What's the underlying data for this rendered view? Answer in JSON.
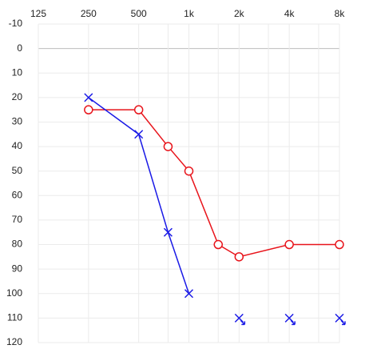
{
  "chart_data": {
    "type": "line",
    "title": "",
    "xlabel": "",
    "ylabel": "",
    "x_scale": "log",
    "x_ticks": [
      {
        "value": 125,
        "label": "125"
      },
      {
        "value": 250,
        "label": "250"
      },
      {
        "value": 500,
        "label": "500"
      },
      {
        "value": 1000,
        "label": "1k"
      },
      {
        "value": 2000,
        "label": "2k"
      },
      {
        "value": 4000,
        "label": "4k"
      },
      {
        "value": 8000,
        "label": "8k"
      }
    ],
    "x_minor_ticks": [
      750,
      1500,
      3000,
      6000
    ],
    "y_ticks": [
      -10,
      0,
      10,
      20,
      30,
      40,
      50,
      60,
      70,
      80,
      90,
      100,
      110,
      120
    ],
    "ylim": [
      -10,
      120
    ],
    "y_inverted": true,
    "grid": true,
    "reference_line_y": 0,
    "series": [
      {
        "color": "#e8141b",
        "marker": "circle",
        "points": [
          {
            "x": 250,
            "y": 25
          },
          {
            "x": 500,
            "y": 25
          },
          {
            "x": 750,
            "y": 40
          },
          {
            "x": 1000,
            "y": 50
          },
          {
            "x": 1500,
            "y": 80
          },
          {
            "x": 2000,
            "y": 85
          },
          {
            "x": 4000,
            "y": 80
          },
          {
            "x": 8000,
            "y": 80
          }
        ]
      },
      {
        "color": "#1a1ae6",
        "marker": "cross",
        "points": [
          {
            "x": 250,
            "y": 20
          },
          {
            "x": 500,
            "y": 35
          },
          {
            "x": 750,
            "y": 75
          },
          {
            "x": 1000,
            "y": 100
          }
        ],
        "no_response_points": [
          {
            "x": 2000,
            "y": 110
          },
          {
            "x": 4000,
            "y": 110
          },
          {
            "x": 8000,
            "y": 110
          }
        ]
      }
    ]
  }
}
